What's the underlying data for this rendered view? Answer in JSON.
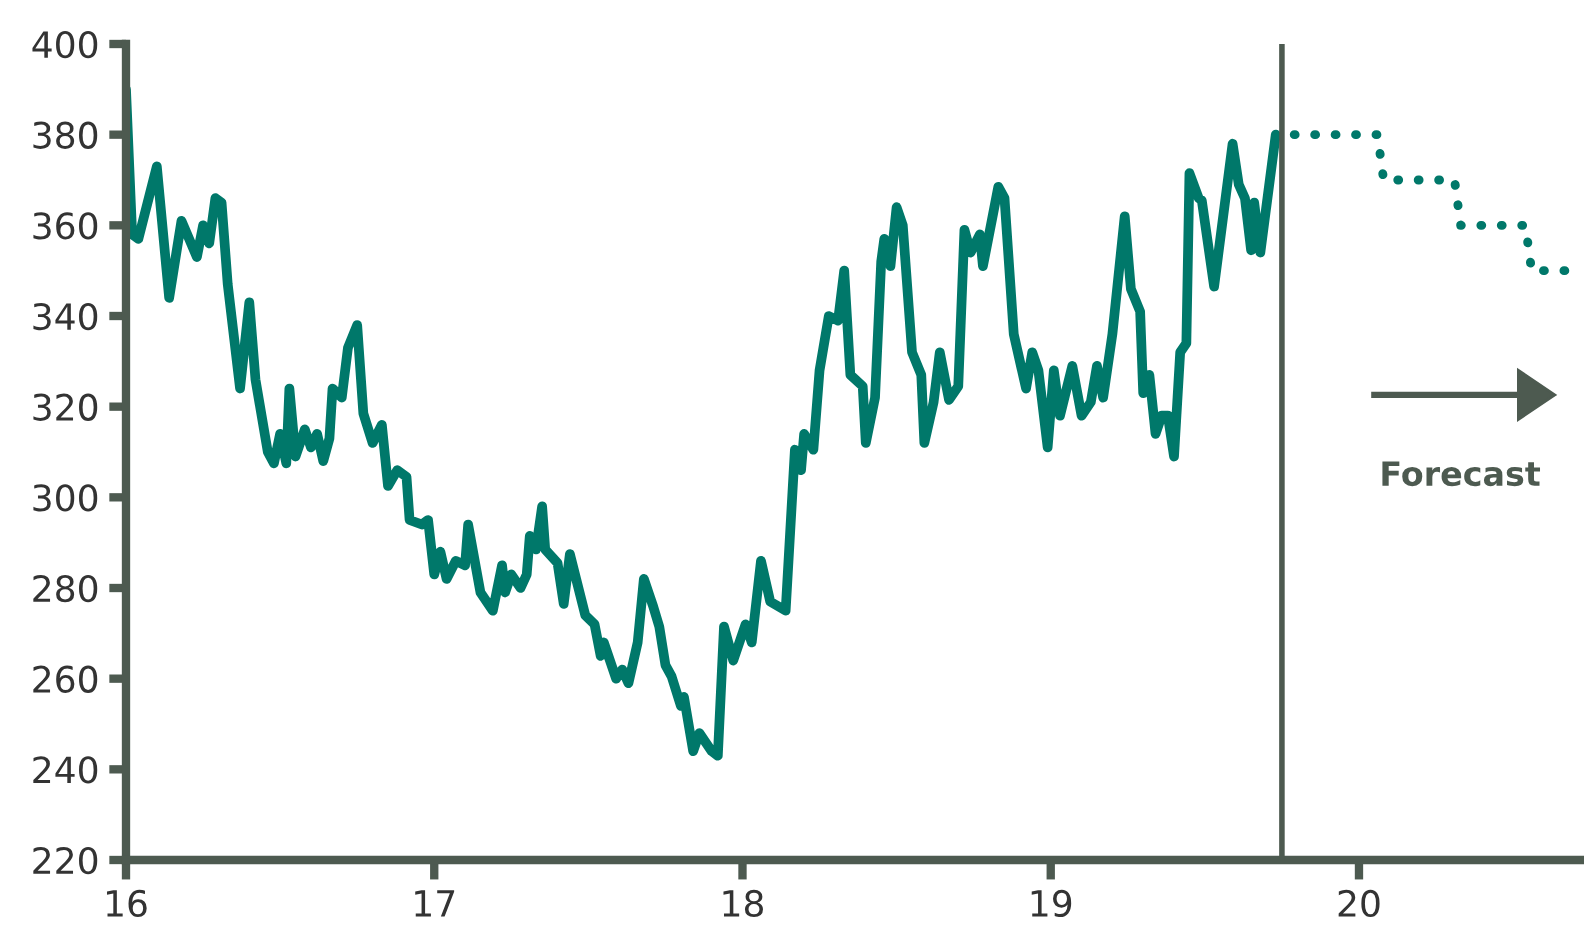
{
  "chart_data": {
    "type": "line",
    "xlim": [
      16,
      20.73
    ],
    "ylim": [
      220,
      400
    ],
    "xticks": [
      16,
      17,
      18,
      19,
      20
    ],
    "yticks": [
      220,
      240,
      260,
      280,
      300,
      320,
      340,
      360,
      380,
      400
    ],
    "grid": false,
    "marker": "none",
    "series": [
      {
        "color": "#00786a",
        "line_style": "solid",
        "x": [
          16.0,
          16.02,
          16.04,
          16.1,
          16.14,
          16.18,
          16.23,
          16.25,
          16.27,
          16.29,
          16.31,
          16.33,
          16.37,
          16.4,
          16.42,
          16.46,
          16.48,
          16.5,
          16.52,
          16.53,
          16.55,
          16.58,
          16.6,
          16.62,
          16.64,
          16.66,
          16.67,
          16.7,
          16.72,
          16.75,
          16.77,
          16.8,
          16.83,
          16.85,
          16.88,
          16.91,
          16.92,
          16.96,
          16.98,
          17.0,
          17.02,
          17.04,
          17.07,
          17.1,
          17.11,
          17.15,
          17.19,
          17.22,
          17.23,
          17.25,
          17.28,
          17.3,
          17.31,
          17.33,
          17.35,
          17.36,
          17.4,
          17.42,
          17.44,
          17.49,
          17.52,
          17.54,
          17.55,
          17.59,
          17.61,
          17.63,
          17.66,
          17.68,
          17.71,
          17.73,
          17.75,
          17.77,
          17.8,
          17.81,
          17.84,
          17.86,
          17.9,
          17.92,
          17.94,
          17.97,
          18.01,
          18.03,
          18.06,
          18.09,
          18.14,
          18.17,
          18.19,
          18.2,
          18.23,
          18.25,
          18.28,
          18.31,
          18.33,
          18.35,
          18.39,
          18.4,
          18.43,
          18.45,
          18.46,
          18.48,
          18.5,
          18.52,
          18.55,
          18.58,
          18.59,
          18.62,
          18.64,
          18.67,
          18.7,
          18.72,
          18.74,
          18.77,
          18.78,
          18.83,
          18.85,
          18.88,
          18.92,
          18.94,
          18.96,
          18.99,
          19.01,
          19.03,
          19.07,
          19.1,
          19.13,
          19.15,
          19.17,
          19.2,
          19.24,
          19.26,
          19.29,
          19.3,
          19.32,
          19.34,
          19.36,
          19.38,
          19.4,
          19.42,
          19.44,
          19.45,
          19.48,
          19.49,
          19.53,
          19.59,
          19.61,
          19.63,
          19.65,
          19.66,
          19.68,
          19.73
        ],
        "values": [
          390,
          358,
          357,
          373,
          344,
          361,
          353,
          360,
          356,
          366,
          365,
          347,
          324,
          343,
          326,
          310,
          307.5,
          314,
          307.5,
          324,
          309,
          315,
          311,
          314,
          308,
          313,
          324,
          322,
          333,
          338,
          318.5,
          312,
          316,
          302.5,
          306,
          304.5,
          295,
          294,
          295,
          283,
          288,
          282,
          286,
          285,
          294,
          279,
          275,
          285,
          279,
          283,
          280,
          283,
          291.5,
          288.5,
          298,
          288.5,
          285.5,
          276.5,
          287.5,
          274,
          272,
          265,
          268,
          260,
          262,
          259,
          268,
          282,
          276,
          271.5,
          263,
          260.5,
          254,
          256,
          244,
          248,
          244,
          243,
          271.5,
          264,
          272,
          268,
          286,
          277,
          275,
          310.5,
          306,
          314,
          310.5,
          328,
          340,
          339,
          350,
          327,
          324.5,
          312,
          322,
          352,
          357,
          351,
          364,
          360,
          332,
          327,
          312,
          321,
          332,
          321.5,
          324.5,
          359,
          354,
          358,
          351,
          368.5,
          366,
          336,
          324,
          332,
          328,
          311,
          328,
          318,
          329,
          318,
          321,
          329,
          322,
          336,
          362,
          346,
          341,
          323,
          327,
          314,
          318,
          318,
          309,
          332,
          334,
          371.5,
          366,
          365.5,
          346.5,
          378,
          369,
          366,
          354.5,
          365,
          354,
          380
        ]
      },
      {
        "color": "#00786a",
        "line_style": "dotted",
        "x": [
          19.79,
          20.06,
          20.08,
          20.31,
          20.33,
          20.54,
          20.56,
          20.73
        ],
        "values": [
          380,
          380,
          370,
          370,
          360,
          360,
          350,
          350
        ]
      }
    ],
    "ref_lines": [
      {
        "axis": "x",
        "value": 19.75,
        "color": "#4d5a50",
        "line_style": "solid"
      }
    ],
    "annotations": [
      "Forecast"
    ]
  }
}
